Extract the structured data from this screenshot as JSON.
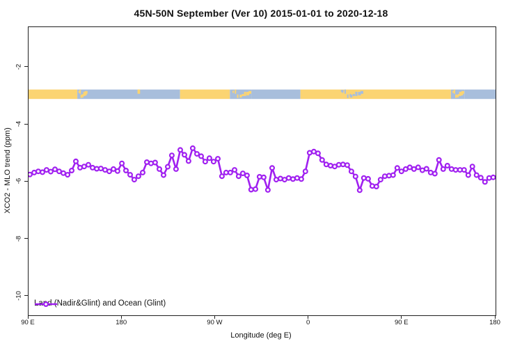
{
  "title": "45N-50N September (Ver 10)   2015-01-01 to 2020-12-18",
  "axes": {
    "xlabel": "Longitude (deg E)",
    "ylabel": "XCO2 - MLO trend (ppm)",
    "x_ticks": [
      {
        "deg": 0,
        "label": "90 E"
      },
      {
        "deg": 90,
        "label": "180"
      },
      {
        "deg": 180,
        "label": "90 W"
      },
      {
        "deg": 270,
        "label": "0"
      },
      {
        "deg": 360,
        "label": "90 E"
      },
      {
        "deg": 450,
        "label": "180"
      }
    ],
    "y_ticks": [
      {
        "value": -2,
        "label": "-2"
      },
      {
        "value": -4,
        "label": "-4"
      },
      {
        "value": -6,
        "label": "-6"
      },
      {
        "value": -8,
        "label": "-8"
      },
      {
        "value": -10,
        "label": "-10"
      }
    ]
  },
  "legend": {
    "label": "Land (Nadir&Glint) and Ocean (Glint)"
  },
  "colors": {
    "series": "#a020f0",
    "marker_fill": "#ffffff",
    "land": "#fbd472",
    "ocean": "#a8bedc",
    "axis": "#1f1f1f"
  },
  "chart_data": {
    "type": "line",
    "title": "45N-50N September (Ver 10)   2015-01-01 to 2020-12-18",
    "xlabel": "Longitude (deg E)",
    "ylabel": "XCO2 - MLO trend (ppm)",
    "xlim_deg_along_axis": [
      0,
      450
    ],
    "ylim": [
      -10.66,
      -0.59
    ],
    "grid": false,
    "legend_position": "bottom-left-inside",
    "series": [
      {
        "name": "Land (Nadir&Glint) and Ocean (Glint)",
        "marker": "open-circle",
        "points": [
          [
            1.3,
            -5.74
          ],
          [
            5.4,
            -5.67
          ],
          [
            9.4,
            -5.63
          ],
          [
            13.4,
            -5.66
          ],
          [
            17.4,
            -5.58
          ],
          [
            21.4,
            -5.64
          ],
          [
            25.5,
            -5.56
          ],
          [
            29.5,
            -5.63
          ],
          [
            33.5,
            -5.69
          ],
          [
            37.6,
            -5.75
          ],
          [
            41.6,
            -5.6
          ],
          [
            45.6,
            -5.28
          ],
          [
            49.6,
            -5.5
          ],
          [
            53.6,
            -5.46
          ],
          [
            57.7,
            -5.4
          ],
          [
            61.7,
            -5.5
          ],
          [
            65.7,
            -5.54
          ],
          [
            69.7,
            -5.53
          ],
          [
            73.8,
            -5.58
          ],
          [
            77.8,
            -5.63
          ],
          [
            81.8,
            -5.55
          ],
          [
            85.8,
            -5.62
          ],
          [
            89.9,
            -5.35
          ],
          [
            93.9,
            -5.6
          ],
          [
            97.9,
            -5.75
          ],
          [
            101.9,
            -5.92
          ],
          [
            105.9,
            -5.8
          ],
          [
            110.0,
            -5.67
          ],
          [
            114.0,
            -5.31
          ],
          [
            118.0,
            -5.35
          ],
          [
            122.0,
            -5.32
          ],
          [
            126.1,
            -5.55
          ],
          [
            130.1,
            -5.76
          ],
          [
            134.1,
            -5.47
          ],
          [
            138.1,
            -5.07
          ],
          [
            142.1,
            -5.55
          ],
          [
            146.2,
            -4.88
          ],
          [
            150.2,
            -5.05
          ],
          [
            154.2,
            -5.27
          ],
          [
            158.2,
            -4.82
          ],
          [
            162.3,
            -5.02
          ],
          [
            166.3,
            -5.1
          ],
          [
            170.3,
            -5.29
          ],
          [
            174.3,
            -5.17
          ],
          [
            178.3,
            -5.29
          ],
          [
            182.4,
            -5.19
          ],
          [
            186.4,
            -5.8
          ],
          [
            190.4,
            -5.67
          ],
          [
            194.4,
            -5.67
          ],
          [
            198.5,
            -5.58
          ],
          [
            202.5,
            -5.8
          ],
          [
            206.5,
            -5.7
          ],
          [
            210.5,
            -5.77
          ],
          [
            214.5,
            -6.27
          ],
          [
            218.6,
            -6.25
          ],
          [
            222.6,
            -5.82
          ],
          [
            226.6,
            -5.84
          ],
          [
            230.6,
            -6.28
          ],
          [
            234.7,
            -5.51
          ],
          [
            238.7,
            -5.92
          ],
          [
            242.7,
            -5.88
          ],
          [
            246.7,
            -5.92
          ],
          [
            250.7,
            -5.86
          ],
          [
            254.8,
            -5.9
          ],
          [
            258.8,
            -5.86
          ],
          [
            262.8,
            -5.9
          ],
          [
            266.8,
            -5.63
          ],
          [
            270.9,
            -4.98
          ],
          [
            274.9,
            -4.94
          ],
          [
            278.9,
            -5.0
          ],
          [
            282.9,
            -5.23
          ],
          [
            286.9,
            -5.39
          ],
          [
            291.0,
            -5.43
          ],
          [
            295.0,
            -5.46
          ],
          [
            299.0,
            -5.4
          ],
          [
            303.0,
            -5.39
          ],
          [
            307.1,
            -5.41
          ],
          [
            311.1,
            -5.63
          ],
          [
            315.1,
            -5.81
          ],
          [
            319.1,
            -6.29
          ],
          [
            323.1,
            -5.86
          ],
          [
            327.2,
            -5.89
          ],
          [
            331.2,
            -6.14
          ],
          [
            335.2,
            -6.16
          ],
          [
            339.2,
            -5.92
          ],
          [
            343.3,
            -5.8
          ],
          [
            347.3,
            -5.78
          ],
          [
            351.3,
            -5.76
          ],
          [
            355.3,
            -5.51
          ],
          [
            359.3,
            -5.63
          ],
          [
            363.4,
            -5.55
          ],
          [
            367.4,
            -5.49
          ],
          [
            371.4,
            -5.55
          ],
          [
            375.4,
            -5.49
          ],
          [
            379.5,
            -5.59
          ],
          [
            383.5,
            -5.54
          ],
          [
            387.5,
            -5.67
          ],
          [
            391.5,
            -5.71
          ],
          [
            395.5,
            -5.23
          ],
          [
            399.6,
            -5.55
          ],
          [
            403.6,
            -5.43
          ],
          [
            407.6,
            -5.55
          ],
          [
            411.6,
            -5.58
          ],
          [
            415.7,
            -5.58
          ],
          [
            419.7,
            -5.58
          ],
          [
            423.7,
            -5.76
          ],
          [
            427.7,
            -5.46
          ],
          [
            431.7,
            -5.76
          ],
          [
            435.8,
            -5.85
          ],
          [
            439.8,
            -6.0
          ],
          [
            443.8,
            -5.86
          ],
          [
            447.8,
            -5.84
          ]
        ]
      }
    ],
    "map_band": {
      "description": "45N-50N latitude strip world map drawn across the plot",
      "ppm_top": -2.77,
      "ppm_bottom": -3.1,
      "segments": [
        {
          "from": 0,
          "to": 47,
          "type": "land"
        },
        {
          "from": 47,
          "to": 57,
          "type": "coast_mix"
        },
        {
          "from": 57,
          "to": 146,
          "type": "ocean"
        },
        {
          "from": 105,
          "to": 107.5,
          "type": "island"
        },
        {
          "from": 146,
          "to": 194,
          "type": "land"
        },
        {
          "from": 194,
          "to": 215,
          "type": "coast_mix"
        },
        {
          "from": 215,
          "to": 262,
          "type": "ocean"
        },
        {
          "from": 262,
          "to": 407,
          "type": "land"
        },
        {
          "from": 299,
          "to": 323,
          "type": "sea_mix"
        },
        {
          "from": 407,
          "to": 420,
          "type": "coast_mix"
        },
        {
          "from": 420,
          "to": 450,
          "type": "ocean"
        }
      ]
    }
  }
}
